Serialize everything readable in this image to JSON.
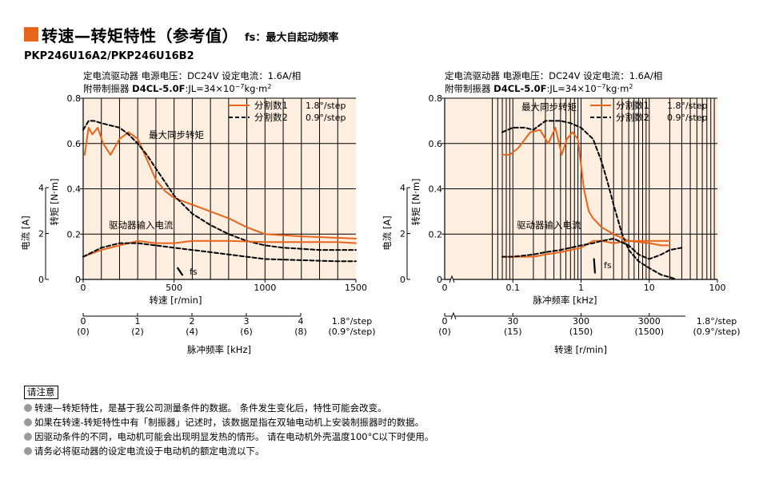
{
  "header": {
    "title": "转速—转矩特性（参考值）",
    "fs_note": "fs：最大自起动频率",
    "model": "PKP246U16A2/PKP246U16B2"
  },
  "colors": {
    "accent": "#e8641b",
    "plot_bg": "#fdeee0"
  },
  "notes": {
    "title": "请注意",
    "items": [
      "转速—转矩特性，是基于我公司测量条件的数据。 条件发生变化后，特性可能会改变。",
      "如果在转速-转矩特性中有「制振器」记述时，该数据是指在双轴电动机上安装制振器时的数据。",
      "因驱动条件的不同，电动机可能会出现明显发热的情形。 请在电动机外壳温度100°C以下时使用。",
      "请务必将驱动器的设定电流设于电动机的额定电流以下。"
    ]
  },
  "chart_data": [
    {
      "type": "line",
      "x_scale": "linear",
      "cond1": "定电流驱动器   电源电压：DC24V   设定电流：1.6A/相",
      "cond2_prefix": "附带制振器",
      "cond2_model": "D4CL-5.0F",
      "cond2_inertia": "JL=34×10",
      "cond2_exp": "−7",
      "cond2_unit": "kg·m",
      "cond2_unit_exp": "2",
      "ylabel_torque": "转矩 [N·m]",
      "ylabel_current": "电流 [A]",
      "xlabel": "转速 [r/min]",
      "xlim": [
        0,
        1500
      ],
      "ylim": [
        0,
        0.8
      ],
      "xticks": [
        "0",
        "500",
        "1000",
        "1500"
      ],
      "yticks": [
        "0",
        "0.2",
        "0.4",
        "0.6",
        "0.8"
      ],
      "current_ticks": [
        "0",
        "2",
        "4"
      ],
      "legend": [
        {
          "label": "分割数1",
          "step": "1.8°/step",
          "style": "solid"
        },
        {
          "label": "分割数2",
          "step": "0.9°/step",
          "style": "dashed"
        }
      ],
      "annotations": {
        "pullout": "最大同步转矩",
        "input_current": "驱动器输入电流",
        "fs": "fs"
      },
      "pulse_axis": {
        "label": "脉冲频率 [kHz]",
        "ticks": [
          "0",
          "1",
          "2",
          "3",
          "4"
        ],
        "sub_ticks": [
          "(0)",
          "(2)",
          "(4)",
          "(6)",
          "(8)"
        ],
        "unit": "1.8°/step",
        "sub_unit": "(0.9°/step)"
      },
      "series": [
        {
          "name": "分割数1",
          "kind": "torque",
          "style": "solid",
          "x": [
            8,
            30,
            50,
            80,
            110,
            150,
            200,
            250,
            300,
            350,
            400,
            450,
            500,
            600,
            700,
            800,
            900,
            1000,
            1200,
            1500
          ],
          "y": [
            0.55,
            0.67,
            0.64,
            0.67,
            0.6,
            0.55,
            0.62,
            0.65,
            0.62,
            0.53,
            0.44,
            0.39,
            0.36,
            0.33,
            0.3,
            0.27,
            0.23,
            0.2,
            0.19,
            0.18
          ]
        },
        {
          "name": "分割数2",
          "kind": "torque",
          "style": "dashed",
          "x": [
            0,
            30,
            60,
            100,
            150,
            200,
            250,
            300,
            350,
            400,
            450,
            500,
            600,
            700,
            800,
            900,
            1000,
            1100,
            1200,
            1300,
            1400,
            1500
          ],
          "y": [
            0.66,
            0.7,
            0.7,
            0.69,
            0.68,
            0.67,
            0.64,
            0.6,
            0.55,
            0.49,
            0.43,
            0.37,
            0.29,
            0.24,
            0.2,
            0.17,
            0.15,
            0.14,
            0.135,
            0.13,
            0.13,
            0.13
          ]
        },
        {
          "name": "分割数1",
          "kind": "current",
          "style": "solid",
          "x": [
            0,
            100,
            200,
            300,
            400,
            500,
            600,
            800,
            1000,
            1200,
            1400,
            1500
          ],
          "y": [
            0.1,
            0.13,
            0.15,
            0.17,
            0.16,
            0.16,
            0.17,
            0.17,
            0.165,
            0.165,
            0.165,
            0.16
          ]
        },
        {
          "name": "分割数2",
          "kind": "current",
          "style": "dashed",
          "x": [
            0,
            100,
            200,
            300,
            400,
            500,
            600,
            700,
            800,
            1000,
            1200,
            1400,
            1500
          ],
          "y": [
            0.1,
            0.14,
            0.16,
            0.16,
            0.15,
            0.14,
            0.13,
            0.12,
            0.11,
            0.09,
            0.085,
            0.08,
            0.08
          ]
        },
        {
          "name": "fs",
          "kind": "fs",
          "style": "solid",
          "x": [
            520,
            545
          ],
          "y": [
            0.05,
            0.02
          ]
        }
      ]
    },
    {
      "type": "line",
      "x_scale": "log",
      "cond1": "定电流驱动器   电源电压：DC24V   设定电流：1.6A/相",
      "cond2_prefix": "附带制振器",
      "cond2_model": "D4CL-5.0F",
      "cond2_inertia": "JL=34×10",
      "cond2_exp": "−7",
      "cond2_unit": "kg·m",
      "cond2_unit_exp": "2",
      "ylabel_torque": "转矩 [N·m]",
      "ylabel_current": "电流 [A]",
      "xlabel": "脉冲频率 [kHz]",
      "xlim": [
        0.01,
        100
      ],
      "ylim": [
        0,
        0.8
      ],
      "xticks": [
        "0",
        "0.1",
        "1",
        "10",
        "100"
      ],
      "yticks": [
        "0",
        "0.2",
        "0.4",
        "0.6",
        "0.8"
      ],
      "current_ticks": [
        "0",
        "2",
        "4"
      ],
      "legend": [
        {
          "label": "分割数1",
          "step": "1.8°/step",
          "style": "solid"
        },
        {
          "label": "分割数2",
          "step": "0.9°/step",
          "style": "dashed"
        }
      ],
      "annotations": {
        "pullout": "最大同步转矩",
        "input_current": "驱动器输入电流",
        "fs": "fs"
      },
      "speed_axis": {
        "label": "转速 [r/min]",
        "ticks": [
          "0",
          "30",
          "300",
          "3000"
        ],
        "sub_ticks": [
          "(0)",
          "(15)",
          "(150)",
          "(1500)"
        ],
        "unit": "1.8°/step",
        "sub_unit": "(0.9°/step)"
      },
      "series": [
        {
          "name": "分割数1",
          "kind": "torque",
          "style": "solid",
          "x": [
            0.07,
            0.09,
            0.12,
            0.18,
            0.25,
            0.33,
            0.42,
            0.52,
            0.62,
            0.75,
            0.9,
            1.1,
            1.3,
            1.5,
            2,
            3,
            5,
            10,
            15,
            20
          ],
          "y": [
            0.55,
            0.55,
            0.58,
            0.65,
            0.66,
            0.6,
            0.67,
            0.55,
            0.62,
            0.65,
            0.62,
            0.4,
            0.3,
            0.27,
            0.23,
            0.2,
            0.17,
            0.16,
            0.15,
            0.15
          ]
        },
        {
          "name": "分割数2",
          "kind": "torque",
          "style": "dashed",
          "x": [
            0.07,
            0.1,
            0.15,
            0.2,
            0.3,
            0.5,
            0.7,
            1,
            1.5,
            2,
            2.5,
            3,
            4,
            5,
            7,
            10,
            15,
            20,
            25
          ],
          "y": [
            0.65,
            0.67,
            0.67,
            0.66,
            0.7,
            0.7,
            0.69,
            0.67,
            0.62,
            0.52,
            0.42,
            0.33,
            0.2,
            0.13,
            0.08,
            0.05,
            0.02,
            0.01,
            0.0
          ]
        },
        {
          "name": "分割数1",
          "kind": "current",
          "style": "solid",
          "x": [
            0.07,
            0.1,
            0.2,
            0.3,
            0.5,
            0.7,
            1,
            1.5,
            2,
            3,
            5,
            10,
            20
          ],
          "y": [
            0.1,
            0.1,
            0.1,
            0.11,
            0.12,
            0.13,
            0.14,
            0.17,
            0.17,
            0.16,
            0.17,
            0.17,
            0.17
          ]
        },
        {
          "name": "分割数2",
          "kind": "current",
          "style": "dashed",
          "x": [
            0.07,
            0.1,
            0.2,
            0.3,
            0.5,
            0.7,
            1,
            1.5,
            2,
            3,
            5,
            7,
            10,
            15,
            20,
            30
          ],
          "y": [
            0.1,
            0.1,
            0.11,
            0.12,
            0.13,
            0.14,
            0.15,
            0.16,
            0.17,
            0.18,
            0.15,
            0.11,
            0.09,
            0.11,
            0.13,
            0.14
          ]
        },
        {
          "name": "fs",
          "kind": "fs",
          "style": "solid",
          "x": [
            1.55,
            1.6
          ],
          "y": [
            0.09,
            0.03
          ]
        }
      ]
    }
  ]
}
